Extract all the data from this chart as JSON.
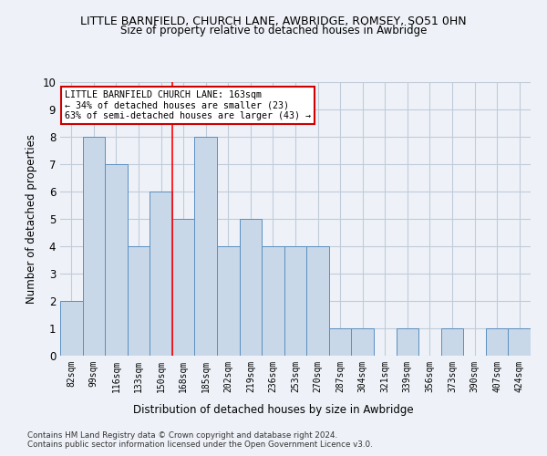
{
  "title": "LITTLE BARNFIELD, CHURCH LANE, AWBRIDGE, ROMSEY, SO51 0HN",
  "subtitle": "Size of property relative to detached houses in Awbridge",
  "xlabel": "Distribution of detached houses by size in Awbridge",
  "ylabel": "Number of detached properties",
  "categories": [
    "82sqm",
    "99sqm",
    "116sqm",
    "133sqm",
    "150sqm",
    "168sqm",
    "185sqm",
    "202sqm",
    "219sqm",
    "236sqm",
    "253sqm",
    "270sqm",
    "287sqm",
    "304sqm",
    "321sqm",
    "339sqm",
    "356sqm",
    "373sqm",
    "390sqm",
    "407sqm",
    "424sqm"
  ],
  "values": [
    2,
    8,
    7,
    4,
    6,
    5,
    8,
    4,
    5,
    4,
    4,
    4,
    1,
    1,
    0,
    1,
    0,
    1,
    0,
    1,
    1
  ],
  "bar_color": "#c8d8e8",
  "bar_edge_color": "#5a8fc0",
  "grid_color": "#c0ccd8",
  "background_color": "#eef2f8",
  "red_line_x": 4.5,
  "annotation_text": "LITTLE BARNFIELD CHURCH LANE: 163sqm\n← 34% of detached houses are smaller (23)\n63% of semi-detached houses are larger (43) →",
  "annotation_box_color": "#ffffff",
  "annotation_border_color": "#cc0000",
  "footer_line1": "Contains HM Land Registry data © Crown copyright and database right 2024.",
  "footer_line2": "Contains public sector information licensed under the Open Government Licence v3.0.",
  "ylim": [
    0,
    10
  ],
  "yticks": [
    0,
    1,
    2,
    3,
    4,
    5,
    6,
    7,
    8,
    9,
    10
  ]
}
